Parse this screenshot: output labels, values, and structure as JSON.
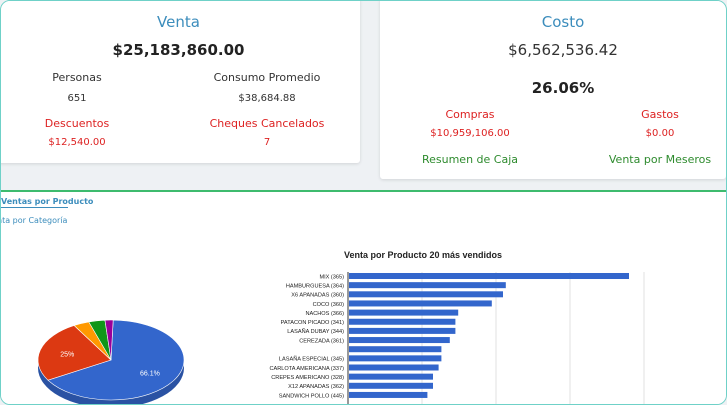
{
  "venta": {
    "title": "Venta",
    "total": "$25,183,860.00",
    "personas_label": "Personas",
    "personas_value": "651",
    "consumo_label": "Consumo Promedio",
    "consumo_value": "$38,684.88",
    "descuentos_label": "Descuentos",
    "descuentos_value": "$12,540.00",
    "cheques_label": "Cheques Cancelados",
    "cheques_value": "7"
  },
  "costo": {
    "title": "Costo",
    "total": "$6,562,536.42",
    "percent": "26.06%",
    "compras_label": "Compras",
    "compras_value": "$10,959,106.00",
    "gastos_label": "Gastos",
    "gastos_value": "$0.00",
    "resumen_link": "Resumen de Caja",
    "meseros_link": "Venta por Meseros"
  },
  "tabs": {
    "productos": "Ventas por Producto",
    "categoria": "nta por Categoría"
  },
  "colors": {
    "accent": "#3c8dbc",
    "bar": "#3366cc",
    "red": "#dd2222",
    "green": "#2e8b2e"
  },
  "chart_data": [
    {
      "type": "bar",
      "title": "Venta por Producto 20 más vendidos",
      "categories": [
        "MIX (365)",
        "HAMBURGUESA (364)",
        "X6 APANADAS (360)",
        "COCO (360)",
        "NACHOS (366)",
        "PATACON PICADO (341)",
        "LASAÑA DUBAY (344)",
        "CEREZADA (361)",
        "",
        "LASAÑA ESPECIAL (345)",
        "CARLOTA AMERICANA (337)",
        "CREPES AMERICANO (328)",
        "X12 APANADAS (362)",
        "SANDWICH POLLO (445)"
      ],
      "values": [
        100,
        56,
        55,
        51,
        39,
        38,
        38,
        36,
        33,
        33,
        32,
        30,
        30,
        28
      ],
      "xlim": [
        0,
        135
      ],
      "grid": true
    },
    {
      "type": "pie",
      "slices": [
        {
          "label": "66.1%",
          "value": 66.1,
          "color": "#3366cc"
        },
        {
          "label": "25%",
          "value": 25,
          "color": "#dc3912"
        },
        {
          "label": "",
          "value": 3.5,
          "color": "#ff9900"
        },
        {
          "label": "",
          "value": 3.6,
          "color": "#109618"
        },
        {
          "label": "",
          "value": 1.8,
          "color": "#990099"
        }
      ]
    }
  ]
}
